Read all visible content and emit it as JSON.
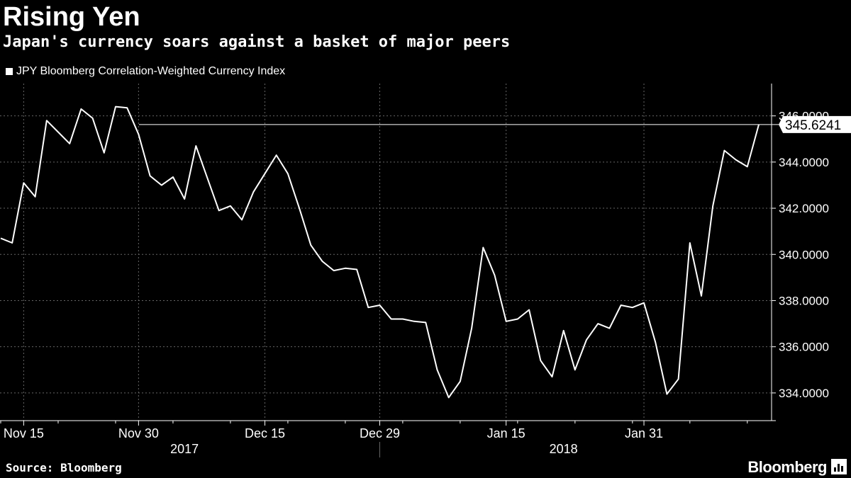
{
  "header": {
    "title": "Rising Yen",
    "subtitle": "Japan's currency soars against a basket of major peers"
  },
  "legend": {
    "label": "JPY Bloomberg Correlation-Weighted Currency Index"
  },
  "footer": {
    "source": "Source: Bloomberg",
    "brand": "Bloomberg",
    "brand_icon": "bloomberg-chart-icon"
  },
  "colors": {
    "background": "#000000",
    "line": "#ffffff",
    "grid": "#666666",
    "text": "#ffffff"
  },
  "chart_data": {
    "type": "line",
    "title": "Rising Yen",
    "subtitle": "Japan's currency soars against a basket of major peers",
    "xlabel": "",
    "ylabel": "",
    "ylim": [
      332.8,
      347.4
    ],
    "y_ticks": [
      {
        "value": 334,
        "label": "334.0000"
      },
      {
        "value": 336,
        "label": "336.0000"
      },
      {
        "value": 338,
        "label": "338.0000"
      },
      {
        "value": 340,
        "label": "340.0000"
      },
      {
        "value": 342,
        "label": "342.0000"
      },
      {
        "value": 344,
        "label": "344.0000"
      },
      {
        "value": 346,
        "label": "346.0000"
      }
    ],
    "x_ticks": [
      {
        "index": 2,
        "label": "Nov 15"
      },
      {
        "index": 12,
        "label": "Nov 30"
      },
      {
        "index": 23,
        "label": "Dec 15"
      },
      {
        "index": 33,
        "label": "Dec 29"
      },
      {
        "index": 44,
        "label": "Jan 15"
      },
      {
        "index": 56,
        "label": "Jan 31"
      }
    ],
    "year_labels": [
      {
        "index": 16,
        "label": "2017"
      },
      {
        "index": 49,
        "label": "2018"
      }
    ],
    "year_divider_index": 33,
    "last_value_label": "345.6241",
    "last_value": 345.6241,
    "grid": true,
    "legend_position": "top-left",
    "series": [
      {
        "name": "JPY Bloomberg Correlation-Weighted Currency Index",
        "values": [
          340.7,
          340.5,
          343.1,
          342.5,
          345.8,
          345.3,
          344.8,
          346.3,
          345.9,
          344.4,
          346.4,
          346.35,
          345.2,
          343.4,
          343.0,
          343.35,
          342.4,
          344.7,
          343.3,
          341.9,
          342.1,
          341.5,
          342.7,
          343.5,
          344.3,
          343.5,
          342.0,
          340.4,
          339.7,
          339.3,
          339.4,
          339.35,
          337.7,
          337.8,
          337.2,
          337.2,
          337.1,
          337.05,
          335.0,
          333.8,
          334.5,
          336.8,
          340.3,
          339.1,
          337.1,
          337.2,
          337.6,
          335.4,
          334.7,
          336.7,
          335.0,
          336.3,
          337.0,
          336.8,
          337.8,
          337.7,
          337.9,
          336.2,
          333.95,
          334.6,
          340.5,
          338.2,
          342.1,
          344.5,
          344.1,
          343.8,
          345.6241
        ]
      }
    ]
  }
}
